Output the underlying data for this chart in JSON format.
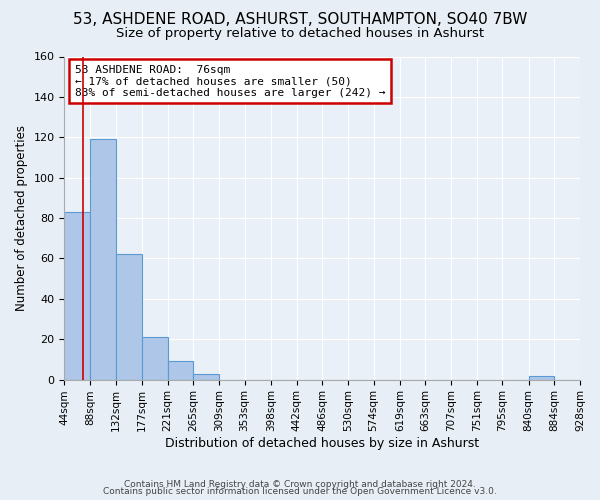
{
  "title": "53, ASHDENE ROAD, ASHURST, SOUTHAMPTON, SO40 7BW",
  "subtitle": "Size of property relative to detached houses in Ashurst",
  "xlabel": "Distribution of detached houses by size in Ashurst",
  "ylabel": "Number of detached properties",
  "bar_edges": [
    44,
    88,
    132,
    177,
    221,
    265,
    309,
    353,
    398,
    442,
    486,
    530,
    574,
    619,
    663,
    707,
    751,
    795,
    840,
    884,
    928
  ],
  "bar_heights": [
    83,
    119,
    62,
    21,
    9,
    3,
    0,
    0,
    0,
    0,
    0,
    0,
    0,
    0,
    0,
    0,
    0,
    0,
    2,
    0
  ],
  "bar_color": "#aec6e8",
  "bar_edge_color": "#5b9bd5",
  "vline_x": 76,
  "vline_color": "#cc0000",
  "annotation_box_text": "53 ASHDENE ROAD:  76sqm\n← 17% of detached houses are smaller (50)\n83% of semi-detached houses are larger (242) →",
  "annotation_box_color": "#cc0000",
  "annotation_box_facecolor": "white",
  "ylim": [
    0,
    160
  ],
  "yticks": [
    0,
    20,
    40,
    60,
    80,
    100,
    120,
    140,
    160
  ],
  "footer_line1": "Contains HM Land Registry data © Crown copyright and database right 2024.",
  "footer_line2": "Contains public sector information licensed under the Open Government Licence v3.0.",
  "bg_color": "#e8eef5",
  "plot_bg_color": "#eaf0f7",
  "title_fontsize": 11,
  "subtitle_fontsize": 9.5,
  "tick_label_fontsize": 7.5
}
